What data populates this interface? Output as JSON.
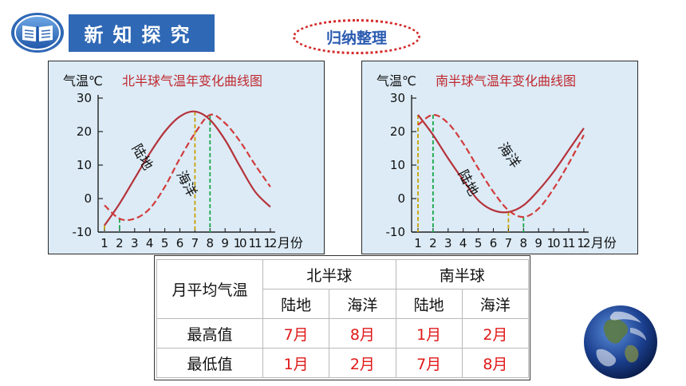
{
  "header": {
    "title": "新知探究",
    "icon": "open-book-icon"
  },
  "summary_label": "归纳整理",
  "colors": {
    "header_bg": "#2f68b5",
    "land_line": "#b5323a",
    "ocean_line": "#d23b3b",
    "panel_bg": "#dcebf6",
    "value_text": "#e01818"
  },
  "chart_data": [
    {
      "type": "line",
      "title": "北半球气温年变化曲线图",
      "ylabel": "气温℃",
      "xlabel": "月份",
      "ylim": [
        -10,
        30
      ],
      "yticks": [
        "30",
        "20",
        "10",
        "0",
        "-10"
      ],
      "x": [
        1,
        2,
        3,
        4,
        5,
        6,
        7,
        8,
        9,
        10,
        11,
        12
      ],
      "xticks": [
        "1",
        "2",
        "3",
        "4",
        "5",
        "6",
        "7",
        "8",
        "9",
        "10",
        "11",
        "12"
      ],
      "series": [
        {
          "name": "陆地",
          "style": "solid",
          "values": [
            -8,
            -1.5,
            6,
            13.5,
            20,
            24.5,
            26,
            23.5,
            17.5,
            9.5,
            2,
            -2.5
          ]
        },
        {
          "name": "海洋",
          "style": "dashed",
          "values": [
            -2,
            -6,
            -6,
            -3,
            3.5,
            12,
            19.5,
            25,
            22.5,
            17,
            10,
            3.5
          ]
        }
      ],
      "markers": [
        {
          "x": 1,
          "y": -8,
          "color": "#c8a200"
        },
        {
          "x": 2,
          "y": -6,
          "color": "#1aa84a"
        },
        {
          "x": 7,
          "y": 26,
          "color": "#c8a200"
        },
        {
          "x": 8,
          "y": 25,
          "color": "#1aa84a"
        }
      ]
    },
    {
      "type": "line",
      "title": "南半球气温年变化曲线图",
      "ylabel": "气温℃",
      "xlabel": "月份",
      "ylim": [
        -10,
        30
      ],
      "yticks": [
        "30",
        "20",
        "10",
        "0",
        "-10"
      ],
      "x": [
        1,
        2,
        3,
        4,
        5,
        6,
        7,
        8,
        9,
        10,
        11,
        12
      ],
      "xticks": [
        "1",
        "2",
        "3",
        "4",
        "5",
        "6",
        "7",
        "8",
        "9",
        "10",
        "11",
        "12"
      ],
      "series": [
        {
          "name": "陆地",
          "style": "solid",
          "values": [
            25,
            19,
            12,
            5.5,
            -0.5,
            -3.5,
            -4,
            -2,
            2.5,
            8,
            14.5,
            21
          ]
        },
        {
          "name": "海洋",
          "style": "dashed",
          "values": [
            22,
            25,
            22.5,
            16.5,
            9,
            2,
            -3.5,
            -5.5,
            -3,
            3,
            10.5,
            19
          ]
        }
      ],
      "markers": [
        {
          "x": 1,
          "y": 25,
          "color": "#c8a200"
        },
        {
          "x": 2,
          "y": 25,
          "color": "#1aa84a"
        },
        {
          "x": 7,
          "y": -4,
          "color": "#c8a200"
        },
        {
          "x": 8,
          "y": -5.5,
          "color": "#1aa84a"
        }
      ]
    }
  ],
  "table": {
    "corner": "月平均气温",
    "groups": [
      "北半球",
      "南半球"
    ],
    "subheaders": [
      "陆地",
      "海洋",
      "陆地",
      "海洋"
    ],
    "rows": [
      {
        "label": "最高值",
        "values": [
          "7月",
          "8月",
          "1月",
          "2月"
        ]
      },
      {
        "label": "最低值",
        "values": [
          "1月",
          "2月",
          "7月",
          "8月"
        ]
      }
    ]
  },
  "decoration": {
    "globe": "earth-globe-image"
  }
}
